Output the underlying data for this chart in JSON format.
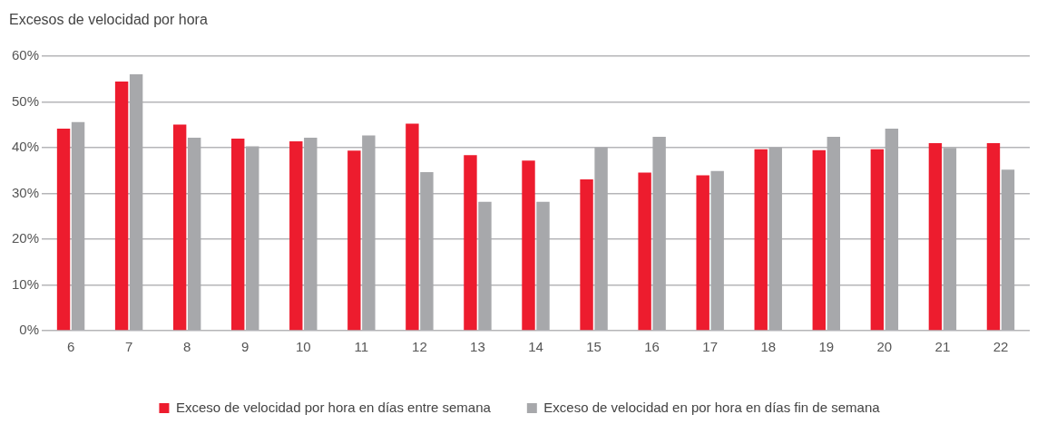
{
  "chart_data": {
    "type": "bar",
    "title": "Excesos de velocidad por hora",
    "categories": [
      "6",
      "7",
      "8",
      "9",
      "10",
      "11",
      "12",
      "13",
      "14",
      "15",
      "16",
      "17",
      "18",
      "19",
      "20",
      "21",
      "22"
    ],
    "series": [
      {
        "name": "Exceso de velocidad por hora en días entre semana",
        "color": "#ed1c2e",
        "values": [
          44.2,
          54.5,
          45.1,
          42.0,
          41.4,
          39.4,
          45.3,
          38.4,
          37.2,
          33.1,
          34.6,
          34.0,
          39.7,
          39.5,
          39.7,
          41.0,
          41.0
        ]
      },
      {
        "name": "Exceso de velocidad en por hora en días fin de semana",
        "color": "#a7a8ab",
        "values": [
          45.6,
          56.1,
          42.2,
          40.3,
          42.2,
          42.7,
          34.7,
          28.2,
          28.2,
          40.1,
          42.4,
          34.9,
          40.1,
          42.4,
          44.2,
          40.0,
          35.2
        ]
      }
    ],
    "ylim": [
      0,
      60
    ],
    "yticks": [
      {
        "value": 0,
        "label": "0%"
      },
      {
        "value": 10,
        "label": "10%"
      },
      {
        "value": 20,
        "label": "20%"
      },
      {
        "value": 30,
        "label": "30%"
      },
      {
        "value": 40,
        "label": "40%"
      },
      {
        "value": 50,
        "label": "50%"
      },
      {
        "value": 60,
        "label": "60%"
      }
    ],
    "grid": "y",
    "legend": "bottom"
  }
}
